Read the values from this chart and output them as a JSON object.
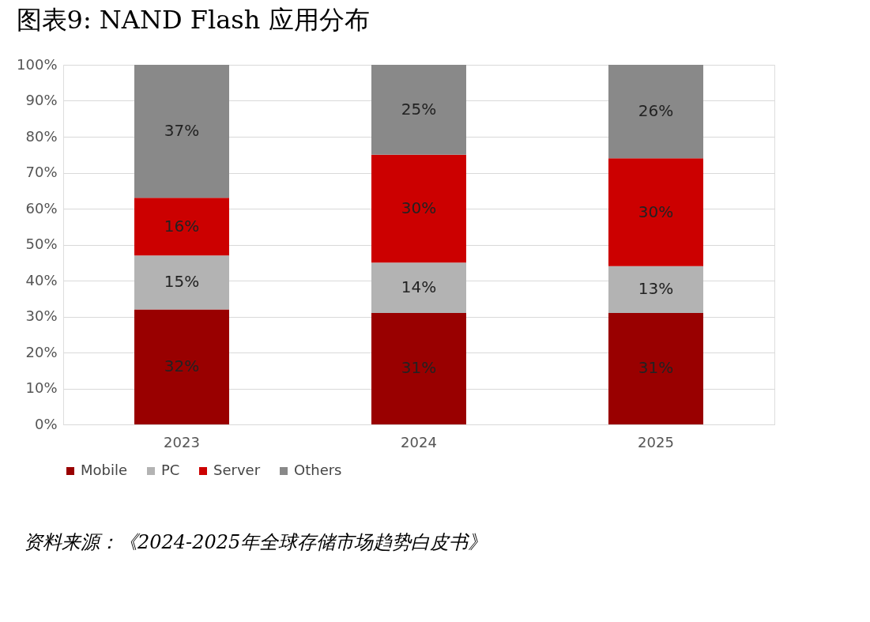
{
  "chart_data": {
    "type": "bar",
    "title": "图表9:    NAND Flash 应用分布",
    "stacked": true,
    "categories": [
      "2023",
      "2024",
      "2025"
    ],
    "series": [
      {
        "name": "Mobile",
        "color": "#990000",
        "values": [
          32,
          31,
          31
        ],
        "value_labels": [
          "32%",
          "31%",
          "31%"
        ]
      },
      {
        "name": "PC",
        "color": "#b3b3b3",
        "values": [
          15,
          14,
          13
        ],
        "value_labels": [
          "15%",
          "14%",
          "13%"
        ]
      },
      {
        "name": "Server",
        "color": "#cc0000",
        "values": [
          16,
          30,
          30
        ],
        "value_labels": [
          "16%",
          "30%",
          "30%"
        ]
      },
      {
        "name": "Others",
        "color": "#898989",
        "values": [
          37,
          25,
          26
        ],
        "value_labels": [
          "37%",
          "25%",
          "26%"
        ]
      }
    ],
    "ylim": [
      0,
      100
    ],
    "yticks": [
      {
        "value": 0,
        "label": "0%"
      },
      {
        "value": 10,
        "label": "10%"
      },
      {
        "value": 20,
        "label": "20%"
      },
      {
        "value": 30,
        "label": "30%"
      },
      {
        "value": 40,
        "label": "40%"
      },
      {
        "value": 50,
        "label": "50%"
      },
      {
        "value": 60,
        "label": "60%"
      },
      {
        "value": 70,
        "label": "70%"
      },
      {
        "value": 80,
        "label": "80%"
      },
      {
        "value": 90,
        "label": "90%"
      },
      {
        "value": 100,
        "label": "100%"
      }
    ],
    "grid": "y",
    "legend": "bottom",
    "annotations": [
      "资料来源：《2024-2025年全球存储市场趋势白皮书》"
    ]
  }
}
